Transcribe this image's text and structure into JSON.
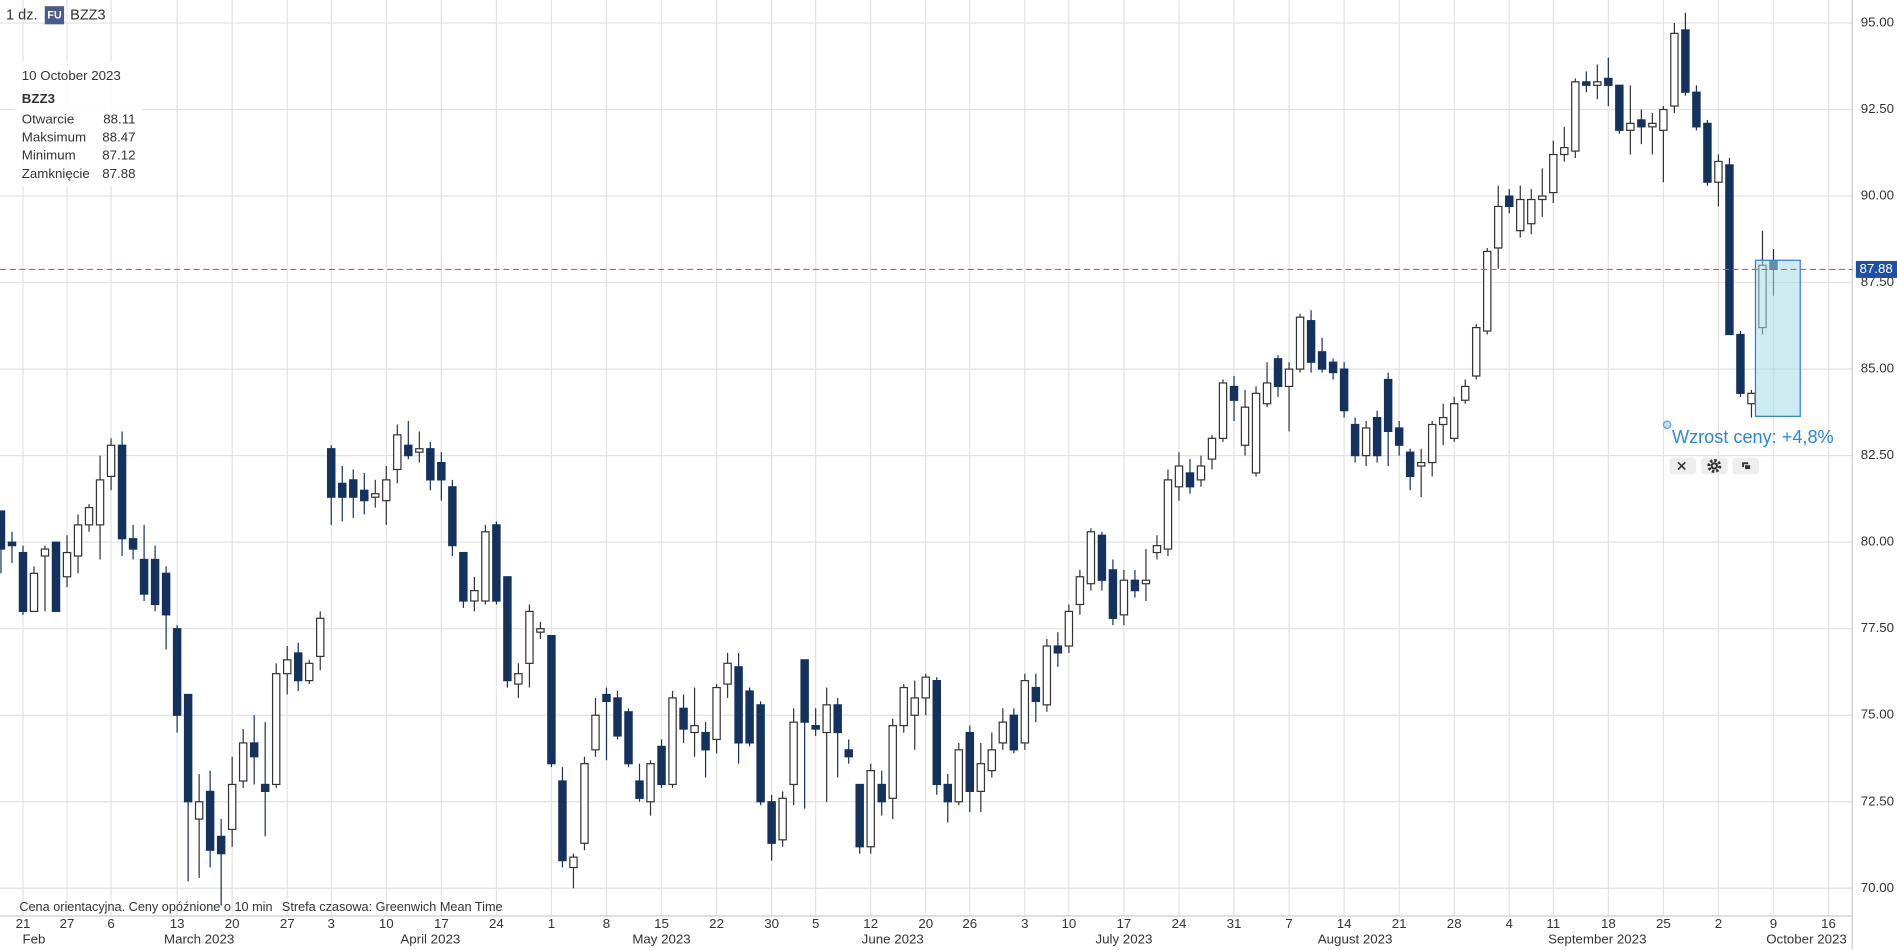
{
  "header": {
    "interval": "1 dz.",
    "badge": "FU",
    "symbol": "BZZ3"
  },
  "info": {
    "date": "10 October 2023",
    "symbol": "BZZ3",
    "labels": [
      "Otwarcie",
      "Maksimum",
      "Minimum",
      "Zamknięcie"
    ]
  },
  "annotation": {
    "text": "Wzrost ceny: +4,8%"
  },
  "footer": {
    "note": "Cena orientacyjna. Ceny opóźnione o 10 min",
    "timezone": "Strefa czasowa: Greenwich Mean Time"
  },
  "chart_data": {
    "type": "candlestick",
    "categories": [
      null,
      null,
      "21",
      null,
      null,
      null,
      "27",
      null,
      null,
      null,
      "6",
      null,
      null,
      null,
      null,
      null,
      "13",
      null,
      null,
      null,
      null,
      "20",
      null,
      null,
      null,
      null,
      "27",
      null,
      null,
      null,
      "3",
      null,
      null,
      null,
      null,
      "10",
      null,
      null,
      null,
      null,
      "17",
      null,
      null,
      null,
      null,
      "24",
      null,
      null,
      null,
      null,
      "1",
      null,
      null,
      null,
      null,
      "8",
      null,
      null,
      null,
      null,
      "15",
      null,
      null,
      null,
      null,
      "22",
      null,
      null,
      null,
      null,
      "30",
      null,
      null,
      null,
      "5",
      null,
      null,
      null,
      null,
      "12",
      null,
      null,
      null,
      null,
      "20",
      null,
      null,
      null,
      "26",
      null,
      null,
      null,
      null,
      "3",
      null,
      null,
      null,
      "10",
      null,
      null,
      null,
      null,
      "17",
      null,
      null,
      null,
      null,
      "24",
      null,
      null,
      null,
      null,
      "31",
      null,
      null,
      null,
      null,
      "7",
      null,
      null,
      null,
      null,
      "14",
      null,
      null,
      null,
      null,
      "21",
      null,
      null,
      null,
      null,
      "28",
      null,
      null,
      null,
      null,
      "4",
      null,
      null,
      null,
      "11",
      null,
      null,
      null,
      null,
      "18",
      null,
      null,
      null,
      null,
      "25",
      null,
      null,
      null,
      null,
      "2",
      null,
      null,
      null,
      null,
      "9",
      null,
      null,
      null,
      null,
      "16"
    ],
    "months": [
      null,
      null,
      null,
      "Feb",
      null,
      null,
      null,
      null,
      null,
      null,
      null,
      null,
      null,
      null,
      null,
      null,
      null,
      null,
      "March 2023",
      null,
      null,
      null,
      null,
      null,
      null,
      null,
      null,
      null,
      null,
      null,
      null,
      null,
      null,
      null,
      null,
      null,
      null,
      null,
      null,
      "April 2023",
      null,
      null,
      null,
      null,
      null,
      null,
      null,
      null,
      null,
      null,
      null,
      null,
      null,
      null,
      null,
      null,
      null,
      null,
      null,
      null,
      "May 2023",
      null,
      null,
      null,
      null,
      null,
      null,
      null,
      null,
      null,
      null,
      null,
      null,
      null,
      null,
      null,
      null,
      null,
      null,
      null,
      null,
      "June 2023",
      null,
      null,
      null,
      null,
      null,
      null,
      null,
      null,
      null,
      null,
      null,
      null,
      null,
      null,
      null,
      null,
      null,
      null,
      null,
      null,
      "July 2023",
      null,
      null,
      null,
      null,
      null,
      null,
      null,
      null,
      null,
      null,
      null,
      null,
      null,
      null,
      null,
      null,
      null,
      null,
      null,
      null,
      "August 2023",
      null,
      null,
      null,
      null,
      null,
      null,
      null,
      null,
      null,
      null,
      null,
      null,
      null,
      null,
      null,
      null,
      null,
      null,
      null,
      null,
      null,
      "September 2023",
      null,
      null,
      null,
      null,
      null,
      null,
      null,
      null,
      null,
      null,
      null,
      null,
      null,
      null,
      null,
      null,
      null,
      null,
      "October 2023",
      null,
      null
    ],
    "open": [
      80.9,
      80.0,
      79.7,
      78.0,
      79.6,
      80.0,
      79.0,
      79.6,
      80.5,
      80.5,
      81.9,
      82.8,
      80.1,
      79.5,
      79.5,
      79.1,
      77.5,
      75.6,
      72.0,
      72.8,
      71.5,
      71.7,
      73.1,
      74.2,
      73.0,
      73.0,
      76.2,
      76.8,
      76.0,
      76.7,
      82.7,
      81.7,
      81.8,
      81.5,
      81.3,
      81.2,
      82.1,
      82.8,
      82.6,
      82.7,
      82.3,
      81.6,
      79.7,
      78.3,
      78.3,
      80.5,
      79.0,
      75.9,
      76.5,
      77.4,
      77.3,
      73.1,
      70.6,
      71.3,
      74.0,
      75.6,
      75.5,
      75.1,
      73.1,
      72.5,
      74.1,
      73.0,
      75.2,
      74.5,
      74.5,
      74.3,
      75.9,
      76.4,
      75.7,
      75.3,
      72.5,
      71.4,
      73.0,
      76.6,
      74.7,
      74.5,
      75.3,
      74.0,
      73.0,
      71.2,
      73.0,
      72.6,
      74.7,
      75.0,
      75.5,
      76.0,
      73.0,
      72.5,
      74.5,
      72.8,
      73.4,
      74.2,
      75.0,
      74.2,
      75.8,
      75.3,
      77.0,
      77.0,
      78.2,
      78.8,
      80.2,
      79.2,
      77.9,
      78.9,
      78.8,
      79.7,
      79.8,
      81.6,
      82.0,
      81.8,
      82.4,
      83.0,
      84.5,
      82.8,
      82.0,
      84.0,
      85.3,
      84.5,
      85.0,
      86.4,
      85.5,
      85.2,
      85.0,
      83.4,
      82.5,
      83.6,
      84.7,
      83.3,
      82.6,
      82.2,
      82.3,
      83.4,
      83.0,
      84.1,
      84.8,
      86.1,
      88.5,
      90.0,
      89.0,
      89.2,
      89.9,
      90.1,
      91.2,
      91.3,
      93.3,
      93.2,
      93.4,
      93.2,
      91.9,
      92.2,
      92.0,
      91.9,
      92.6,
      94.8,
      93.0,
      92.1,
      90.4,
      90.9,
      86.0,
      84.0,
      86.2,
      88.11,
      null,
      null,
      null,
      null,
      null
    ],
    "high": [
      80.9,
      80.3,
      79.9,
      79.3,
      79.9,
      80.0,
      80.2,
      80.8,
      81.1,
      82.5,
      83.0,
      83.2,
      80.5,
      80.5,
      79.9,
      79.3,
      77.6,
      75.6,
      73.3,
      73.4,
      72.0,
      73.8,
      74.6,
      75.0,
      74.8,
      76.5,
      77.0,
      77.1,
      76.6,
      78.0,
      82.8,
      82.2,
      82.1,
      82.0,
      81.8,
      82.2,
      83.4,
      83.5,
      83.2,
      82.9,
      82.6,
      81.8,
      79.7,
      79.0,
      80.5,
      80.6,
      79.0,
      76.5,
      78.2,
      77.7,
      77.3,
      73.5,
      71.0,
      73.8,
      75.5,
      75.8,
      75.7,
      75.2,
      73.6,
      73.7,
      74.3,
      75.7,
      75.6,
      75.8,
      74.8,
      75.9,
      76.8,
      76.8,
      75.8,
      75.4,
      72.7,
      72.8,
      75.2,
      76.6,
      75.2,
      75.8,
      75.5,
      74.3,
      73.0,
      73.6,
      73.4,
      74.9,
      75.9,
      76.0,
      76.2,
      76.1,
      73.3,
      74.2,
      74.7,
      74.2,
      74.5,
      75.2,
      75.2,
      76.2,
      76.2,
      77.2,
      77.4,
      78.2,
      79.2,
      80.4,
      80.3,
      79.5,
      79.2,
      79.2,
      79.8,
      80.2,
      82.1,
      82.6,
      82.4,
      82.5,
      83.1,
      84.7,
      84.8,
      84.4,
      84.5,
      85.2,
      85.4,
      85.2,
      86.6,
      86.7,
      85.9,
      85.3,
      85.2,
      83.6,
      83.5,
      83.8,
      84.9,
      83.5,
      82.7,
      82.7,
      83.5,
      84.0,
      84.2,
      84.7,
      86.3,
      88.5,
      90.3,
      90.2,
      90.3,
      90.2,
      90.8,
      91.6,
      92.0,
      93.4,
      93.6,
      93.8,
      94.0,
      93.2,
      93.2,
      92.5,
      92.4,
      92.6,
      95.0,
      95.3,
      93.2,
      92.2,
      91.2,
      91.1,
      86.1,
      84.4,
      89.0,
      88.47,
      null,
      null,
      null,
      null,
      null
    ],
    "low": [
      79.1,
      79.4,
      77.9,
      78.0,
      78.0,
      78.0,
      78.7,
      79.1,
      80.3,
      79.5,
      81.5,
      79.6,
      79.5,
      78.3,
      78.0,
      76.9,
      74.5,
      70.2,
      70.3,
      70.6,
      69.5,
      71.2,
      72.9,
      73.0,
      71.5,
      72.9,
      75.6,
      75.7,
      75.9,
      76.3,
      80.5,
      80.6,
      80.7,
      80.8,
      81.0,
      80.5,
      81.7,
      82.4,
      82.3,
      81.5,
      81.2,
      79.6,
      78.1,
      78.0,
      78.2,
      78.2,
      75.8,
      75.5,
      75.8,
      77.2,
      73.5,
      70.6,
      70.0,
      71.1,
      73.8,
      73.7,
      74.3,
      73.5,
      72.5,
      72.1,
      72.9,
      72.9,
      74.2,
      73.8,
      73.2,
      73.9,
      75.5,
      73.6,
      74.1,
      72.4,
      70.8,
      71.2,
      72.4,
      72.3,
      74.4,
      72.5,
      73.2,
      73.6,
      71.0,
      71.0,
      72.1,
      72.0,
      74.5,
      74.0,
      75.0,
      72.7,
      71.9,
      72.4,
      72.2,
      72.2,
      73.2,
      74.0,
      73.9,
      74.0,
      74.8,
      75.1,
      76.4,
      76.8,
      77.9,
      78.6,
      78.6,
      77.6,
      77.6,
      78.4,
      78.3,
      79.5,
      79.6,
      81.2,
      81.4,
      81.6,
      82.1,
      82.9,
      83.5,
      82.5,
      81.9,
      83.9,
      84.2,
      83.2,
      84.9,
      84.9,
      84.9,
      84.7,
      83.6,
      82.3,
      82.2,
      82.3,
      82.2,
      82.5,
      81.5,
      81.3,
      81.9,
      82.8,
      82.9,
      84.0,
      84.7,
      86.0,
      87.9,
      89.5,
      88.8,
      88.9,
      89.4,
      89.8,
      91.0,
      91.1,
      93.0,
      92.8,
      92.6,
      91.8,
      91.2,
      91.5,
      91.2,
      90.4,
      92.4,
      92.9,
      91.9,
      90.3,
      89.7,
      86.0,
      84.2,
      83.6,
      86.0,
      87.12,
      null,
      null,
      null,
      null,
      null
    ],
    "close": [
      79.8,
      79.9,
      78.0,
      79.1,
      79.8,
      78.0,
      79.7,
      80.5,
      81.0,
      81.8,
      82.8,
      80.1,
      79.8,
      78.5,
      78.2,
      77.9,
      75.0,
      72.5,
      72.5,
      71.1,
      71.0,
      73.0,
      74.2,
      73.8,
      72.8,
      76.2,
      76.6,
      76.0,
      76.5,
      77.8,
      81.3,
      81.3,
      81.3,
      81.2,
      81.4,
      81.8,
      83.1,
      82.5,
      82.7,
      81.8,
      81.8,
      79.9,
      78.3,
      78.6,
      80.3,
      78.3,
      76.0,
      76.2,
      78.0,
      77.5,
      73.6,
      70.8,
      70.9,
      73.6,
      75.0,
      75.4,
      74.4,
      73.6,
      72.6,
      73.6,
      73.0,
      75.5,
      74.6,
      74.7,
      74.0,
      75.8,
      76.5,
      74.2,
      74.2,
      72.5,
      71.3,
      72.6,
      74.8,
      74.8,
      74.6,
      75.3,
      74.5,
      73.8,
      71.2,
      73.4,
      72.5,
      74.7,
      75.8,
      75.5,
      76.1,
      73.0,
      72.5,
      74.0,
      72.8,
      73.6,
      74.0,
      74.8,
      74.0,
      76.0,
      75.4,
      77.0,
      76.8,
      78.0,
      79.0,
      80.3,
      78.9,
      77.8,
      78.9,
      78.6,
      78.9,
      79.9,
      81.8,
      82.2,
      81.6,
      82.2,
      83.0,
      84.6,
      84.1,
      83.9,
      84.3,
      84.6,
      84.5,
      85.0,
      86.5,
      85.2,
      85.0,
      84.9,
      83.8,
      82.5,
      83.3,
      82.5,
      83.2,
      82.8,
      81.9,
      82.3,
      83.4,
      83.6,
      84.0,
      84.5,
      86.2,
      88.4,
      89.7,
      89.7,
      89.9,
      89.9,
      90.0,
      91.2,
      91.4,
      93.3,
      93.2,
      93.3,
      93.2,
      91.9,
      92.1,
      92.0,
      92.1,
      92.5,
      94.7,
      93.0,
      92.0,
      90.4,
      91.0,
      86.0,
      84.3,
      84.3,
      88.0,
      87.88,
      null,
      null,
      null,
      null,
      null
    ],
    "up_color": "#ffffff",
    "down_color": "#15325f",
    "ylim": [
      69.2,
      95.66
    ],
    "yticks": [
      {
        "value": 70,
        "label": "70.00"
      },
      {
        "value": 72.5,
        "label": "72.50"
      },
      {
        "value": 75,
        "label": "75.00"
      },
      {
        "value": 77.5,
        "label": "77.50"
      },
      {
        "value": 80,
        "label": "80.00"
      },
      {
        "value": 82.5,
        "label": "82.50"
      },
      {
        "value": 85,
        "label": "85.00"
      },
      {
        "value": 87.5,
        "label": "87.50"
      },
      {
        "value": 90,
        "label": "90.00"
      },
      {
        "value": 92.5,
        "label": "92.50"
      },
      {
        "value": 95,
        "label": "95.00"
      }
    ],
    "grid": true
  }
}
